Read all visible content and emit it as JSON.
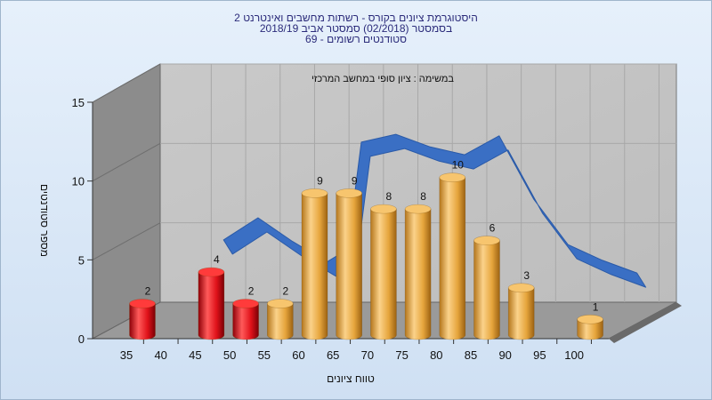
{
  "title_lines": [
    "היסטוגרמת ציונים בקורס - רשתות מחשבים ואינטרנט 2",
    "בסמסטר  (02/2018)  סמסטר אביב 2018/19",
    "סטודנטים רשומים - 69"
  ],
  "chart_data": {
    "type": "bar",
    "annotation": "במשימה : ציון סופי במחשב המרכזי",
    "xlabel": "טווח ציונים",
    "ylabel": "מספר סטודנטים",
    "ylim": [
      0,
      15
    ],
    "yticks": [
      "0",
      "5",
      "10",
      "15"
    ],
    "categories": [
      "35",
      "40",
      "45",
      "50",
      "55",
      "60",
      "65",
      "70",
      "75",
      "80",
      "85",
      "90",
      "95",
      "100"
    ],
    "bars": [
      {
        "x": 35,
        "value": 2,
        "label": "2",
        "color": "#e0121a"
      },
      {
        "x": 45,
        "value": 4,
        "label": "4",
        "color": "#e0121a"
      },
      {
        "x": 50,
        "value": 2,
        "label": "2",
        "color": "#e0121a"
      },
      {
        "x": 55,
        "value": 2,
        "label": "2",
        "color": "#f0b44a"
      },
      {
        "x": 60,
        "value": 9,
        "label": "9",
        "color": "#f0b44a"
      },
      {
        "x": 65,
        "value": 9,
        "label": "9",
        "color": "#f0b44a"
      },
      {
        "x": 70,
        "value": 8,
        "label": "8",
        "color": "#f0b44a"
      },
      {
        "x": 75,
        "value": 8,
        "label": "8",
        "color": "#f0b44a"
      },
      {
        "x": 80,
        "value": 10,
        "label": "10",
        "color": "#f0b44a"
      },
      {
        "x": 85,
        "value": 6,
        "label": "6",
        "color": "#f0b44a"
      },
      {
        "x": 90,
        "value": 3,
        "label": "3",
        "color": "#f0b44a"
      },
      {
        "x": 100,
        "value": 1,
        "label": "1",
        "color": "#f0b44a"
      }
    ],
    "trend": {
      "color": "#3a6fc4",
      "points": [
        [
          45,
          4.6
        ],
        [
          50,
          6.0
        ],
        [
          55,
          4.5
        ],
        [
          60,
          3.2
        ],
        [
          63,
          4.0
        ],
        [
          65,
          10.8
        ],
        [
          70,
          11.3
        ],
        [
          75,
          10.5
        ],
        [
          80,
          10.0
        ],
        [
          85,
          11.2
        ],
        [
          90,
          7.2
        ],
        [
          95,
          4.3
        ],
        [
          100,
          3.3
        ],
        [
          105,
          2.5
        ]
      ]
    },
    "grid": true,
    "legend": "none"
  }
}
